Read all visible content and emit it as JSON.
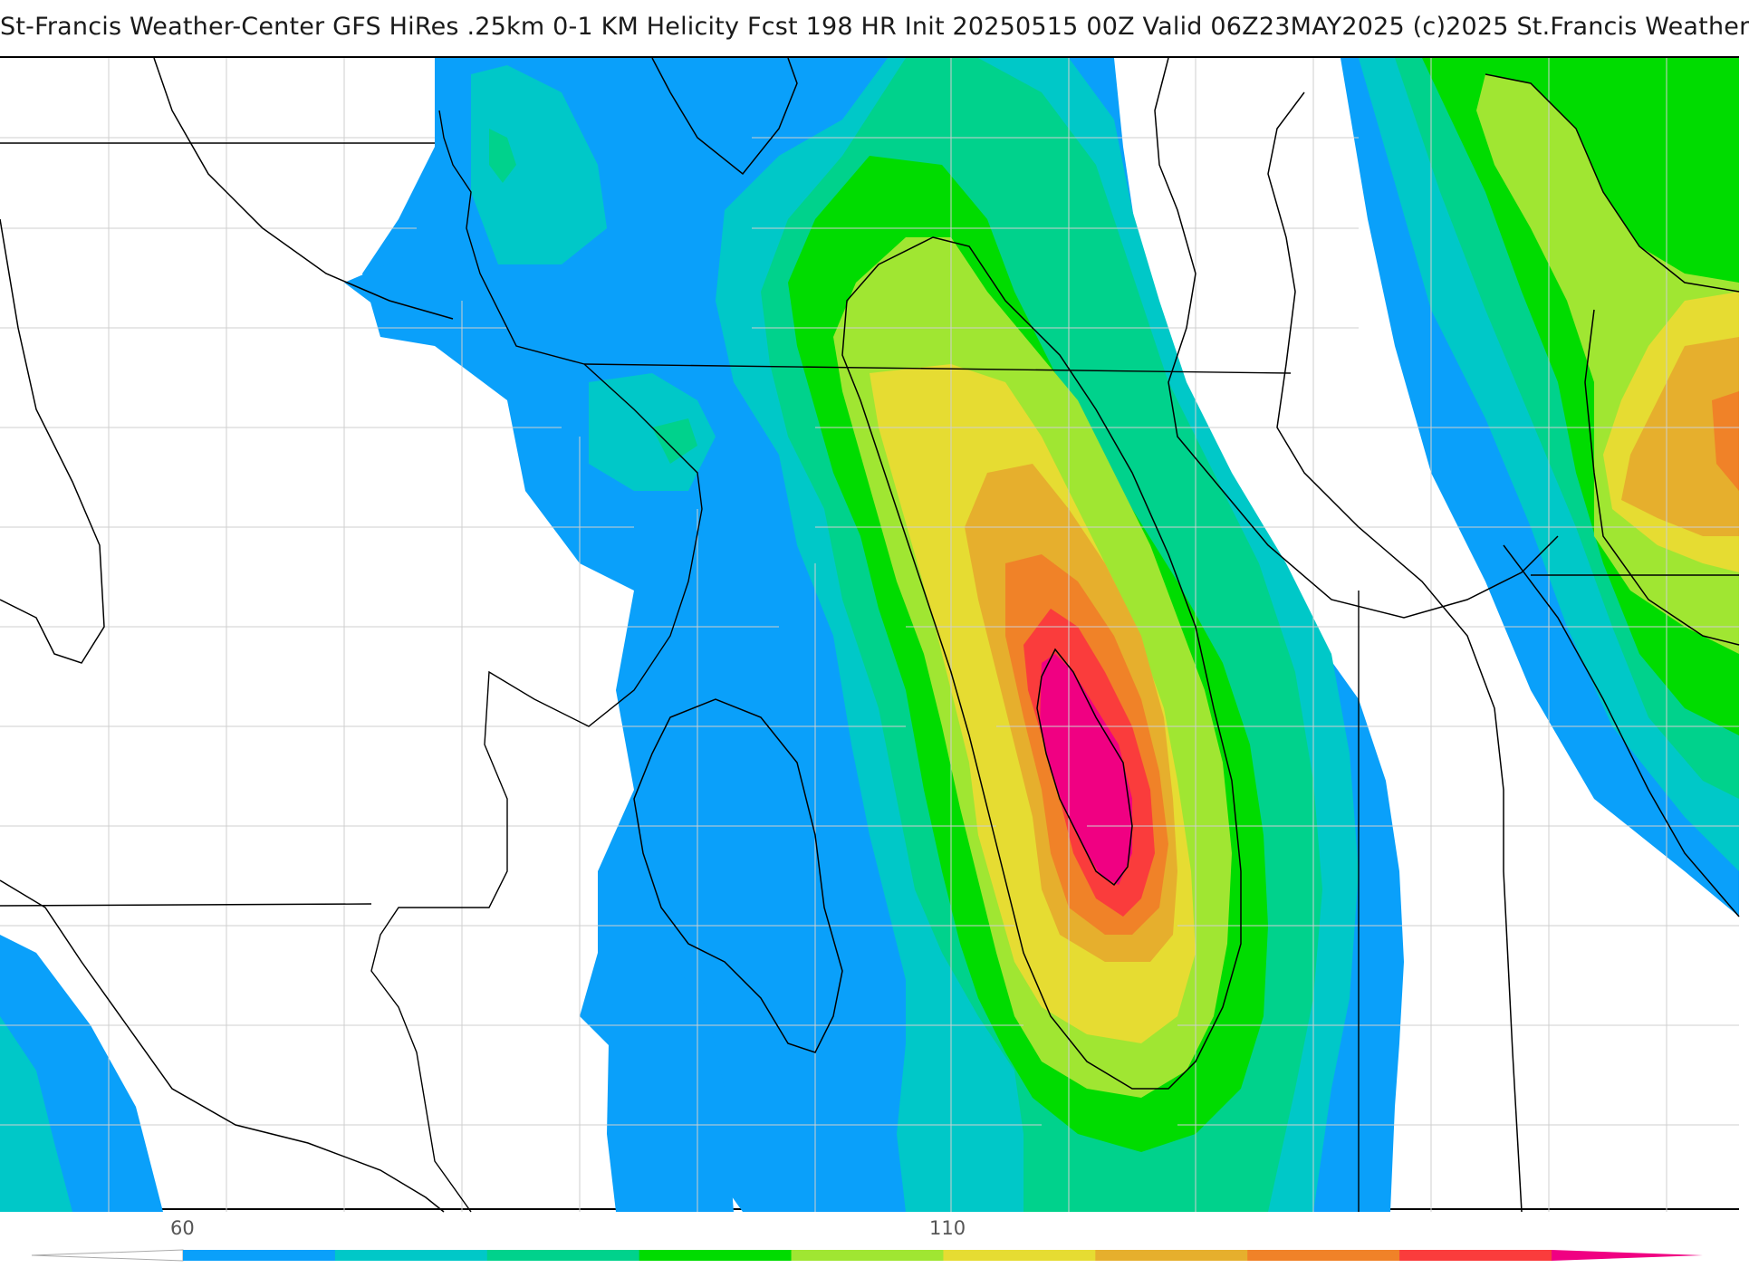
{
  "header": {
    "title": "St-Francis Weather-Center GFS HiRes .25km 0-1 KM Helicity Fcst 198 HR Init 20250515 00Z  Valid 06Z23MAY2025    (c)2025 St.Francis Weather"
  },
  "legend": {
    "tick_labels": [
      "60",
      "110"
    ],
    "colors": [
      "#0aa0fa",
      "#00c8c8",
      "#00d28c",
      "#00dc00",
      "#a0e632",
      "#e6dc32",
      "#e6af2d",
      "#f08228",
      "#fa3c3c",
      "#f00082"
    ]
  }
}
